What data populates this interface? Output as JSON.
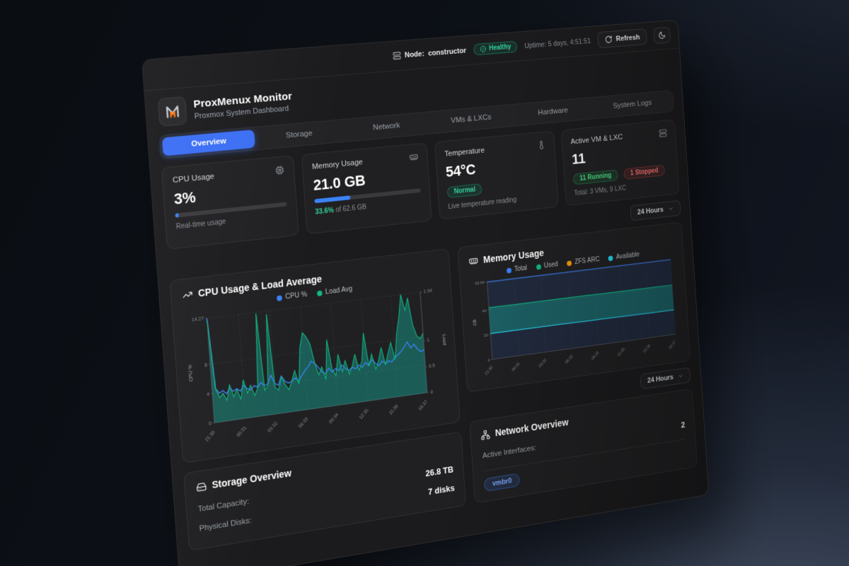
{
  "app": {
    "title": "ProxMenux Monitor",
    "subtitle": "Proxmox System Dashboard"
  },
  "topbar": {
    "node_label": "Node:",
    "node_value": "constructor",
    "health": "Healthy",
    "uptime": "Uptime: 5 days, 4:51:51",
    "refresh": "Refresh"
  },
  "tabs": {
    "active": "Overview",
    "items": [
      "Overview",
      "Storage",
      "Network",
      "VMs & LXCs",
      "Hardware",
      "System Logs"
    ]
  },
  "stats": {
    "cpu": {
      "label": "CPU Usage",
      "value": "3%",
      "percent": 3,
      "caption": "Real-time usage"
    },
    "memory": {
      "label": "Memory Usage",
      "value": "21.0 GB",
      "percent": 33.6,
      "caption_pct": "33.6%",
      "caption_rest": " of 62.6 GB"
    },
    "temperature": {
      "label": "Temperature",
      "value": "54°C",
      "status": "Normal",
      "caption": "Live temperature reading"
    },
    "vms": {
      "label": "Active VM & LXC",
      "value": "11",
      "running": "11 Running",
      "stopped": "1 Stopped",
      "caption": "Total: 3 VMs, 9 LXC"
    }
  },
  "range_selector": {
    "label": "24 Hours"
  },
  "chart_data": [
    {
      "id": "cpu_load",
      "type": "area",
      "title": "CPU Usage & Load Average",
      "legend": [
        {
          "name": "CPU %",
          "color": "#3b82f6"
        },
        {
          "name": "Load Avg",
          "color": "#10b981"
        }
      ],
      "x_ticks": [
        "21:30",
        "00:31",
        "03:32",
        "06:33",
        "09:34",
        "12:35",
        "15:36",
        "18:37"
      ],
      "y_left": {
        "label": "CPU %",
        "ticks": [
          0,
          4,
          8,
          14.27
        ],
        "max": 14.27
      },
      "y_right": {
        "label": "Load",
        "ticks": [
          0,
          0.5,
          1,
          1.94
        ],
        "max": 1.94
      },
      "grid": true,
      "series": [
        {
          "name": "CPU %",
          "axis": "left",
          "color": "#3b82f6",
          "values": [
            14.2,
            4.6,
            3.9,
            4.2,
            3.7,
            4.4,
            3.9,
            4.2,
            3.8,
            4.5,
            4.0,
            3.8,
            4.3,
            4.0,
            4.6,
            4.1,
            4.3,
            5.4,
            4.2,
            3.9,
            5.1,
            4.3,
            4.0,
            4.2,
            4.6,
            4.1,
            4.8,
            5.4,
            5.9,
            6.6,
            6.2,
            5.6,
            4.9,
            4.6,
            5.3,
            4.7,
            5.1,
            4.8,
            5.5,
            4.9,
            4.6,
            5.0,
            4.7,
            5.2,
            4.8,
            5.4,
            4.9,
            5.7,
            5.1,
            4.7,
            5.3,
            4.9,
            5.2,
            5.0,
            5.6,
            5.9,
            6.3,
            6.9,
            7.5,
            6.6,
            7.1,
            6.3,
            5.9,
            6.1
          ]
        },
        {
          "name": "Load Avg",
          "axis": "right",
          "color": "#10b981",
          "fill": "rgba(20,184,166,0.40)",
          "values": [
            1.9,
            0.62,
            0.45,
            0.52,
            0.38,
            0.66,
            0.43,
            0.56,
            0.36,
            0.72,
            0.46,
            0.6,
            0.4,
            0.53,
            1.92,
            0.47,
            0.56,
            1.88,
            0.5,
            0.44,
            0.68,
            0.52,
            0.42,
            0.58,
            0.76,
            0.5,
            1.18,
            1.45,
            1.36,
            1.22,
            0.86,
            0.62,
            0.76,
            0.52,
            1.26,
            0.7,
            0.56,
            0.96,
            0.62,
            0.82,
            0.56,
            0.7,
            0.92,
            0.6,
            0.78,
            1.3,
            0.66,
            0.88,
            0.58,
            0.74,
            0.98,
            0.64,
            0.86,
            1.05,
            0.72,
            1.22,
            1.52,
            1.94,
            1.62,
            1.86,
            1.34,
            1.12,
            1.05,
            1.15
          ]
        }
      ]
    },
    {
      "id": "memory",
      "type": "area",
      "title": "Memory Usage",
      "legend": [
        {
          "name": "Total",
          "color": "#3b82f6"
        },
        {
          "name": "Used",
          "color": "#10b981"
        },
        {
          "name": "ZFS ARC",
          "color": "#f59e0b"
        },
        {
          "name": "Available",
          "color": "#22d3ee"
        }
      ],
      "x_ticks": [
        "21:30",
        "00:31",
        "03:32",
        "06:33",
        "09:34",
        "12:35",
        "15:36",
        "18:37"
      ],
      "y": {
        "label": "GB",
        "ticks": [
          0,
          20,
          40,
          62.56
        ],
        "max": 62.56
      },
      "grid": true,
      "band_fill": "rgba(20,184,166,0.38)",
      "series": [
        {
          "name": "Total",
          "color": "#3b82f6",
          "area_fill": "#212a3d",
          "values": [
            62.56,
            62.56,
            62.56,
            62.56,
            62.56,
            62.56,
            62.56,
            62.56,
            62.56
          ]
        },
        {
          "name": "Used",
          "color": "#10b981",
          "values": [
            41.8,
            41.7,
            41.7,
            41.6,
            41.6,
            41.5,
            41.4,
            41.4,
            41.3
          ]
        },
        {
          "name": "ZFS ARC",
          "color": "#f59e0b",
          "values": []
        },
        {
          "name": "Available",
          "color": "#22d3ee",
          "values": [
            20.9,
            20.9,
            20.8,
            20.8,
            20.7,
            20.7,
            20.6,
            20.5,
            20.5
          ]
        }
      ]
    }
  ],
  "storage": {
    "title": "Storage Overview",
    "rows": [
      {
        "label": "Total Capacity:",
        "value": "26.8 TB"
      },
      {
        "label": "Physical Disks:",
        "value": "7 disks"
      }
    ]
  },
  "network": {
    "title": "Network Overview",
    "rows": [
      {
        "label": "Active Interfaces:",
        "value": "2"
      }
    ],
    "interface_badge": "vmbr0"
  },
  "colors": {
    "accent": "#3b6ef5",
    "green": "#10b981",
    "red": "#ef4444",
    "cyan": "#22d3ee",
    "orange": "#f59e0b",
    "logo_orange": "#f97316"
  }
}
